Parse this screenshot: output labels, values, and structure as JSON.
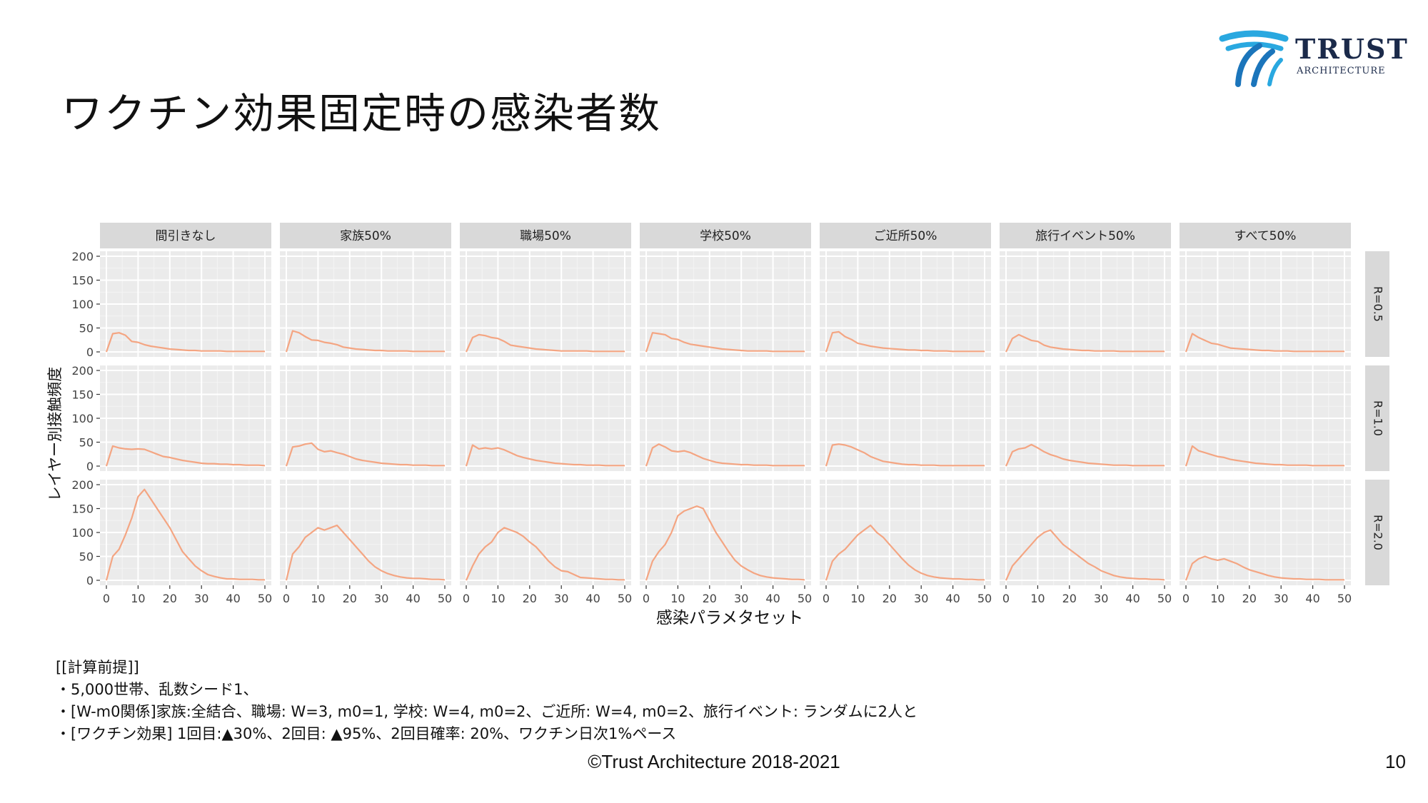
{
  "slide": {
    "title": "ワクチン効果固定時の感染者数",
    "page_number": "10",
    "copyright": "©Trust Architecture 2018-2021"
  },
  "logo": {
    "word": "TRUST",
    "sub": "ARCHITECTURE",
    "colors": [
      "#29a8e0",
      "#1b75bb",
      "#1b2a4a"
    ]
  },
  "notes": [
    "[[計算前提]]",
    "・5,000世帯、乱数シード1、",
    "・[W-m0関係]家族:全結合、職場: W=3, m0=1, 学校: W=4, m0=2、ご近所: W=4, m0=2、旅行イベント: ランダムに2人と",
    "・[ワクチン効果] 1回目:▲30%、2回目: ▲95%、2回目確率: 20%、ワクチン日次1%ペース"
  ],
  "chart_data": {
    "type": "line",
    "facet": "grid",
    "columns": [
      "間引きなし",
      "家族50%",
      "職場50%",
      "学校50%",
      "ご近所50%",
      "旅行イベント50%",
      "すべて50%"
    ],
    "rows": [
      "R=0.5",
      "R=1.0",
      "R=2.0"
    ],
    "xlabel": "感染パラメタセット",
    "ylabel": "レイヤー別接触頻度",
    "xlim": [
      0,
      50
    ],
    "ylim": [
      0,
      200
    ],
    "xticks": [
      0,
      10,
      20,
      30,
      40,
      50
    ],
    "yticks": [
      0,
      50,
      100,
      150,
      200
    ],
    "line_color": "#f4a582",
    "panel_bg": "#ebebeb",
    "strip_bg": "#d9d9d9",
    "grid": true,
    "x": [
      0,
      2,
      4,
      6,
      8,
      10,
      12,
      14,
      16,
      18,
      20,
      22,
      24,
      26,
      28,
      30,
      32,
      34,
      36,
      38,
      40,
      42,
      44,
      46,
      48,
      50
    ],
    "series": [
      [
        {
          "values": [
            0,
            38,
            40,
            35,
            22,
            20,
            15,
            12,
            10,
            8,
            6,
            5,
            4,
            3,
            3,
            2,
            2,
            2,
            2,
            1,
            1,
            1,
            1,
            1,
            1,
            1
          ]
        },
        {
          "values": [
            0,
            44,
            40,
            32,
            25,
            24,
            20,
            18,
            15,
            10,
            8,
            6,
            5,
            4,
            3,
            3,
            2,
            2,
            2,
            2,
            1,
            1,
            1,
            1,
            1,
            1
          ]
        },
        {
          "values": [
            0,
            30,
            36,
            34,
            30,
            28,
            22,
            14,
            12,
            10,
            8,
            6,
            5,
            4,
            3,
            2,
            2,
            2,
            2,
            2,
            1,
            1,
            1,
            1,
            1,
            1
          ]
        },
        {
          "values": [
            0,
            40,
            38,
            36,
            28,
            26,
            20,
            16,
            14,
            12,
            10,
            8,
            6,
            5,
            4,
            3,
            2,
            2,
            2,
            2,
            1,
            1,
            1,
            1,
            1,
            1
          ]
        },
        {
          "values": [
            0,
            40,
            42,
            32,
            26,
            18,
            15,
            12,
            10,
            8,
            7,
            6,
            5,
            4,
            4,
            3,
            3,
            2,
            2,
            2,
            1,
            1,
            1,
            1,
            1,
            1
          ]
        },
        {
          "values": [
            0,
            28,
            36,
            30,
            24,
            22,
            14,
            10,
            8,
            6,
            5,
            4,
            3,
            3,
            2,
            2,
            2,
            2,
            1,
            1,
            1,
            1,
            1,
            1,
            1,
            1
          ]
        },
        {
          "values": [
            0,
            38,
            30,
            24,
            18,
            16,
            12,
            8,
            7,
            6,
            5,
            4,
            3,
            3,
            2,
            2,
            2,
            1,
            1,
            1,
            1,
            1,
            1,
            1,
            1,
            1
          ]
        }
      ],
      [
        {
          "values": [
            0,
            42,
            38,
            36,
            35,
            36,
            35,
            30,
            25,
            20,
            18,
            15,
            12,
            10,
            8,
            6,
            5,
            5,
            4,
            4,
            3,
            3,
            2,
            2,
            2,
            1
          ]
        },
        {
          "values": [
            0,
            40,
            42,
            46,
            48,
            35,
            30,
            32,
            28,
            25,
            20,
            15,
            12,
            10,
            8,
            6,
            5,
            4,
            3,
            3,
            2,
            2,
            2,
            1,
            1,
            1
          ]
        },
        {
          "values": [
            0,
            44,
            36,
            38,
            36,
            38,
            34,
            28,
            22,
            18,
            15,
            12,
            10,
            8,
            6,
            5,
            4,
            3,
            3,
            2,
            2,
            2,
            1,
            1,
            1,
            1
          ]
        },
        {
          "values": [
            0,
            38,
            46,
            40,
            32,
            30,
            32,
            28,
            22,
            16,
            12,
            8,
            6,
            5,
            4,
            3,
            3,
            2,
            2,
            2,
            1,
            1,
            1,
            1,
            1,
            1
          ]
        },
        {
          "values": [
            0,
            44,
            46,
            44,
            40,
            34,
            28,
            20,
            15,
            10,
            8,
            6,
            4,
            3,
            3,
            2,
            2,
            2,
            1,
            1,
            1,
            1,
            1,
            1,
            1,
            1
          ]
        },
        {
          "values": [
            0,
            30,
            36,
            38,
            45,
            38,
            30,
            24,
            20,
            15,
            12,
            10,
            8,
            6,
            5,
            4,
            3,
            2,
            2,
            2,
            1,
            1,
            1,
            1,
            1,
            1
          ]
        },
        {
          "values": [
            0,
            42,
            32,
            28,
            24,
            20,
            18,
            14,
            12,
            10,
            8,
            6,
            5,
            4,
            3,
            3,
            2,
            2,
            2,
            2,
            1,
            1,
            1,
            1,
            1,
            1
          ]
        }
      ],
      [
        {
          "values": [
            0,
            50,
            65,
            95,
            130,
            175,
            190,
            170,
            150,
            130,
            110,
            85,
            60,
            45,
            30,
            20,
            12,
            8,
            5,
            3,
            3,
            2,
            2,
            2,
            1,
            1
          ]
        },
        {
          "values": [
            0,
            55,
            70,
            90,
            100,
            110,
            105,
            110,
            115,
            100,
            85,
            70,
            55,
            40,
            28,
            20,
            14,
            10,
            7,
            5,
            4,
            4,
            3,
            2,
            2,
            1
          ]
        },
        {
          "values": [
            0,
            30,
            55,
            70,
            80,
            100,
            110,
            105,
            100,
            92,
            80,
            70,
            55,
            40,
            28,
            20,
            18,
            12,
            6,
            5,
            4,
            3,
            2,
            2,
            1,
            1
          ]
        },
        {
          "values": [
            0,
            40,
            60,
            75,
            100,
            135,
            145,
            150,
            155,
            150,
            125,
            100,
            80,
            60,
            42,
            30,
            22,
            15,
            10,
            7,
            5,
            4,
            3,
            2,
            2,
            1
          ]
        },
        {
          "values": [
            0,
            40,
            55,
            65,
            80,
            95,
            105,
            115,
            100,
            90,
            75,
            60,
            45,
            32,
            22,
            15,
            10,
            7,
            5,
            4,
            3,
            3,
            2,
            2,
            1,
            1
          ]
        },
        {
          "values": [
            0,
            30,
            45,
            60,
            75,
            90,
            100,
            105,
            90,
            75,
            65,
            55,
            45,
            35,
            28,
            20,
            15,
            10,
            7,
            5,
            4,
            3,
            3,
            2,
            2,
            1
          ]
        },
        {
          "values": [
            0,
            35,
            45,
            50,
            45,
            42,
            45,
            40,
            35,
            28,
            22,
            18,
            14,
            10,
            7,
            5,
            4,
            3,
            3,
            2,
            2,
            2,
            1,
            1,
            1,
            1
          ]
        }
      ]
    ]
  }
}
